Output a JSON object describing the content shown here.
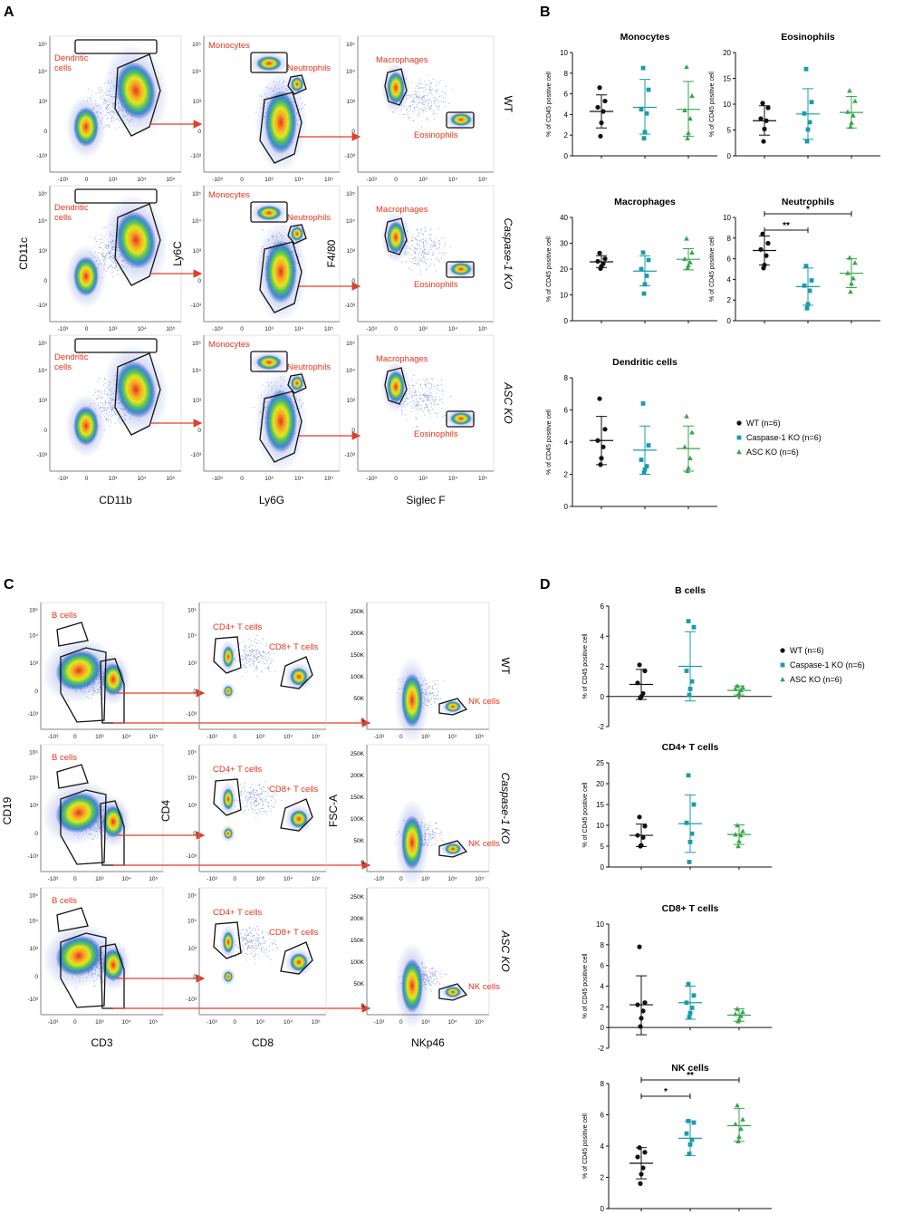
{
  "panel_letters": [
    "A",
    "B",
    "C",
    "D"
  ],
  "colors": {
    "wt": "#111111",
    "casp": "#1a9bab",
    "asc": "#37a64a",
    "gate_label": "#e8331c",
    "arrow": "#e23c2a"
  },
  "flow_A": {
    "x_axis_labels": [
      "CD11b",
      "Ly6G",
      "Siglec F"
    ],
    "y_axis_labels": [
      "CD11c",
      "Ly6C",
      "F4/80"
    ],
    "row_labels": [
      "WT",
      "Caspase-1 KO",
      "ASC KO"
    ],
    "col1_gates": [
      "Dendritic",
      "cells"
    ],
    "col2_gates": [
      "Monocytes",
      "Neutrophils"
    ],
    "col3_gates": [
      "Macrophages",
      "Eosinophils"
    ]
  },
  "flow_C": {
    "x_axis_labels": [
      "CD3",
      "CD8",
      "NKp46"
    ],
    "y_axis_labels": [
      "CD19",
      "CD4",
      "FSC-A"
    ],
    "row_labels": [
      "WT",
      "Caspase-1 KO",
      "ASC KO"
    ],
    "col1_gates": [
      "B cells"
    ],
    "col2_gates": [
      "CD4+ T cells",
      "CD8+ T cells"
    ],
    "col3_gates": [
      "NK cells"
    ],
    "fsc_ticks": [
      "250K",
      "200K",
      "150K",
      "100K",
      "50K",
      "0"
    ]
  },
  "legend": {
    "items": [
      "WT (n=6)",
      "Caspase-1 KO (n=6)",
      "ASC KO (n=6)"
    ]
  },
  "chart_data": [
    {
      "type": "scatter",
      "title": "Monocytes",
      "ylabel": "% of CD45 positive cell",
      "ylim": [
        0,
        10
      ],
      "yticks": [
        0,
        2,
        4,
        6,
        8,
        10
      ],
      "series": [
        {
          "name": "WT (n=6)",
          "values": [
            6.6,
            5.3,
            4.7,
            4.3,
            3.2,
            1.9
          ],
          "mean": 4.3,
          "sd_low": 2.7,
          "sd_high": 5.9
        },
        {
          "name": "Caspase-1 KO (n=6)",
          "values": [
            8.5,
            6.4,
            4.5,
            4.1,
            2.3,
            1.7
          ],
          "mean": 4.7,
          "sd_low": 2.1,
          "sd_high": 7.4
        },
        {
          "name": "ASC KO (n=6)",
          "values": [
            8.6,
            5.8,
            4.4,
            3.6,
            2.2,
            1.7
          ],
          "mean": 4.5,
          "sd_low": 1.9,
          "sd_high": 7.2
        }
      ]
    },
    {
      "type": "scatter",
      "title": "Eosinophils",
      "ylabel": "% of CD45 positive cell",
      "ylim": [
        0,
        20
      ],
      "yticks": [
        0,
        5,
        10,
        15,
        20
      ],
      "series": [
        {
          "name": "WT (n=6)",
          "values": [
            10.2,
            9.3,
            7.2,
            6.8,
            5.2,
            2.8
          ],
          "mean": 6.8,
          "sd_low": 4.0,
          "sd_high": 9.7
        },
        {
          "name": "Caspase-1 KO (n=6)",
          "values": [
            16.8,
            10.4,
            8.2,
            6.5,
            5.1,
            2.8
          ],
          "mean": 8.1,
          "sd_low": 3.2,
          "sd_high": 13.0
        },
        {
          "name": "ASC KO (n=6)",
          "values": [
            12.6,
            10.6,
            8.5,
            7.8,
            6.4,
            5.6
          ],
          "mean": 8.4,
          "sd_low": 5.4,
          "sd_high": 11.5
        }
      ]
    },
    {
      "type": "scatter",
      "title": "Macrophages",
      "ylabel": "% of CD45 positive cell",
      "ylim": [
        0,
        40
      ],
      "yticks": [
        0,
        10,
        20,
        30,
        40
      ],
      "series": [
        {
          "name": "WT (n=6)",
          "values": [
            26.2,
            24.0,
            23.0,
            22.1,
            21.0,
            20.2
          ],
          "mean": 22.8,
          "sd_low": 20.6,
          "sd_high": 25.2
        },
        {
          "name": "Caspase-1 KO (n=6)",
          "values": [
            26.4,
            23.5,
            20.0,
            17.4,
            14.1,
            10.5
          ],
          "mean": 19.2,
          "sd_low": 13.5,
          "sd_high": 25.1
        },
        {
          "name": "ASC KO (n=6)",
          "values": [
            31.8,
            26.4,
            23.9,
            22.6,
            21.4,
            20.4
          ],
          "mean": 23.8,
          "sd_low": 19.7,
          "sd_high": 27.9
        }
      ]
    },
    {
      "type": "scatter",
      "title": "Neutrophils",
      "ylabel": "% of CD45 positive cell",
      "ylim": [
        0,
        10
      ],
      "yticks": [
        0,
        2,
        4,
        6,
        8,
        10
      ],
      "series": [
        {
          "name": "WT (n=6)",
          "values": [
            8.4,
            7.5,
            6.9,
            6.3,
            5.4,
            5.1
          ],
          "mean": 6.8,
          "sd_low": 5.4,
          "sd_high": 8.2
        },
        {
          "name": "Caspase-1 KO (n=6)",
          "values": [
            5.3,
            3.9,
            3.4,
            2.9,
            1.6,
            1.2
          ],
          "mean": 3.3,
          "sd_low": 1.5,
          "sd_high": 5.1
        },
        {
          "name": "ASC KO (n=6)",
          "values": [
            6.1,
            5.6,
            4.6,
            4.1,
            3.6,
            2.8
          ],
          "mean": 4.6,
          "sd_low": 3.2,
          "sd_high": 6.0
        }
      ]
    },
    {
      "type": "scatter",
      "title": "Dendritic cells",
      "ylabel": "% of CD45 positive cell",
      "ylim": [
        0,
        8
      ],
      "yticks": [
        0,
        2,
        4,
        6,
        8
      ],
      "series": [
        {
          "name": "WT (n=6)",
          "values": [
            6.7,
            4.8,
            4.1,
            3.7,
            3.0,
            2.6
          ],
          "mean": 4.1,
          "sd_low": 2.6,
          "sd_high": 5.6
        },
        {
          "name": "Caspase-1 KO (n=6)",
          "values": [
            6.4,
            3.8,
            2.9,
            2.5,
            2.3,
            2.1
          ],
          "mean": 3.5,
          "sd_low": 2.0,
          "sd_high": 5.0
        },
        {
          "name": "ASC KO (n=6)",
          "values": [
            5.6,
            4.6,
            3.7,
            3.0,
            2.4,
            2.2
          ],
          "mean": 3.6,
          "sd_low": 2.2,
          "sd_high": 5.0
        }
      ]
    },
    {
      "type": "scatter",
      "title": "B cells",
      "ylabel": "% of CD45 positive cell",
      "ylim": [
        -2,
        6
      ],
      "yticks": [
        -2,
        0,
        2,
        4,
        6
      ],
      "series": [
        {
          "name": "WT (n=6)",
          "values": [
            2.1,
            1.7,
            0.9,
            0.2,
            0.0,
            -0.1
          ],
          "mean": 0.8,
          "sd_low": -0.2,
          "sd_high": 1.8
        },
        {
          "name": "Caspase-1 KO (n=6)",
          "values": [
            5.0,
            4.6,
            1.7,
            1.0,
            0.5,
            0.1
          ],
          "mean": 2.0,
          "sd_low": -0.3,
          "sd_high": 4.3
        },
        {
          "name": "ASC KO (n=6)",
          "values": [
            0.7,
            0.6,
            0.5,
            0.4,
            0.2,
            0.1
          ],
          "mean": 0.4,
          "sd_low": 0.1,
          "sd_high": 0.7
        }
      ]
    },
    {
      "type": "scatter",
      "title": "CD4+ T cells",
      "ylabel": "% of CD45 positive cell",
      "ylim": [
        0,
        25
      ],
      "yticks": [
        0,
        5,
        10,
        15,
        20,
        25
      ],
      "series": [
        {
          "name": "WT (n=6)",
          "values": [
            12.0,
            9.8,
            7.6,
            7.1,
            5.2,
            5.0
          ],
          "mean": 7.6,
          "sd_low": 4.9,
          "sd_high": 10.3
        },
        {
          "name": "Caspase-1 KO (n=6)",
          "values": [
            22.0,
            15.0,
            10.6,
            8.0,
            6.0,
            1.2
          ],
          "mean": 10.4,
          "sd_low": 3.5,
          "sd_high": 17.3
        },
        {
          "name": "ASC KO (n=6)",
          "values": [
            10.0,
            8.6,
            7.8,
            7.6,
            6.2,
            5.0
          ],
          "mean": 7.8,
          "sd_low": 5.4,
          "sd_high": 10.1
        }
      ]
    },
    {
      "type": "scatter",
      "title": "CD8+ T cells",
      "ylabel": "% of CD45 positive cell",
      "ylim": [
        -2,
        10
      ],
      "yticks": [
        -2,
        0,
        2,
        4,
        6,
        8,
        10
      ],
      "series": [
        {
          "name": "WT (n=6)",
          "values": [
            7.8,
            2.4,
            2.2,
            1.6,
            0.9,
            0.1
          ],
          "mean": 2.2,
          "sd_low": -0.7,
          "sd_high": 5.0
        },
        {
          "name": "Caspase-1 KO (n=6)",
          "values": [
            4.2,
            3.1,
            2.4,
            1.9,
            1.4,
            1.0
          ],
          "mean": 2.4,
          "sd_low": 0.8,
          "sd_high": 4.0
        },
        {
          "name": "ASC KO (n=6)",
          "values": [
            1.8,
            1.5,
            1.3,
            1.1,
            0.8,
            0.6
          ],
          "mean": 1.2,
          "sd_low": 0.6,
          "sd_high": 1.8
        }
      ]
    },
    {
      "type": "scatter",
      "title": "NK cells",
      "ylabel": "% of CD45 positive cell",
      "ylim": [
        0,
        8
      ],
      "yticks": [
        0,
        2,
        4,
        6,
        8
      ],
      "series": [
        {
          "name": "WT (n=6)",
          "values": [
            3.9,
            3.6,
            3.3,
            2.6,
            2.2,
            1.6
          ],
          "mean": 2.9,
          "sd_low": 1.9,
          "sd_high": 3.9
        },
        {
          "name": "Caspase-1 KO (n=6)",
          "values": [
            5.6,
            5.5,
            4.8,
            4.4,
            4.1,
            3.5
          ],
          "mean": 4.5,
          "sd_low": 3.4,
          "sd_high": 5.6
        },
        {
          "name": "ASC KO (n=6)",
          "values": [
            6.6,
            5.7,
            5.4,
            5.1,
            4.6,
            4.3
          ],
          "mean": 5.3,
          "sd_low": 4.3,
          "sd_high": 6.4
        }
      ]
    }
  ],
  "significance": [
    {
      "chart": "Neutrophils",
      "comparisons": [
        {
          "groups": [
            0,
            1
          ],
          "label": "**"
        },
        {
          "groups": [
            0,
            2
          ],
          "label": "*"
        }
      ]
    },
    {
      "chart": "NK cells",
      "comparisons": [
        {
          "groups": [
            0,
            1
          ],
          "label": "*"
        },
        {
          "groups": [
            0,
            2
          ],
          "label": "**"
        }
      ]
    }
  ]
}
